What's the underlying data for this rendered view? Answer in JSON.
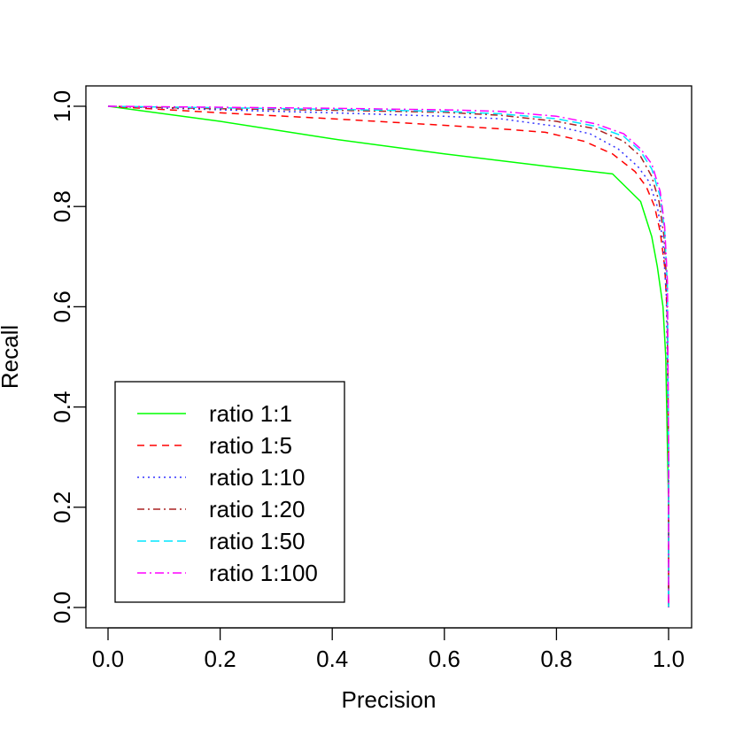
{
  "chart_data": {
    "type": "line",
    "title": "",
    "xlabel": "Precision",
    "ylabel": "Recall",
    "xlim": [
      0.0,
      1.0
    ],
    "ylim": [
      0.0,
      1.0
    ],
    "xticks": [
      "0.0",
      "0.2",
      "0.4",
      "0.6",
      "0.8",
      "1.0"
    ],
    "yticks": [
      "0.0",
      "0.2",
      "0.4",
      "0.6",
      "0.8",
      "1.0"
    ],
    "grid": false,
    "legend_position": "bottom-left",
    "series": [
      {
        "name": "ratio 1:1",
        "color": "#00ff00",
        "dash": "solid",
        "x": [
          0.0,
          0.2,
          0.4,
          0.6,
          0.8,
          0.9,
          0.95,
          0.97,
          0.98,
          0.99,
          0.995,
          1.0,
          1.0
        ],
        "y": [
          1.0,
          0.97,
          0.935,
          0.905,
          0.878,
          0.865,
          0.81,
          0.74,
          0.68,
          0.6,
          0.5,
          0.2,
          0.0
        ]
      },
      {
        "name": "ratio 1:5",
        "color": "#ff0000",
        "dash": "8,6",
        "x": [
          0.0,
          0.2,
          0.4,
          0.6,
          0.7,
          0.78,
          0.85,
          0.9,
          0.94,
          0.96,
          0.975,
          0.985,
          0.993,
          0.998,
          1.0,
          1.0
        ],
        "y": [
          1.0,
          0.987,
          0.975,
          0.962,
          0.955,
          0.948,
          0.93,
          0.905,
          0.87,
          0.84,
          0.8,
          0.75,
          0.68,
          0.58,
          0.3,
          0.0
        ]
      },
      {
        "name": "ratio 1:10",
        "color": "#3333ff",
        "dash": "2,4",
        "x": [
          0.0,
          0.2,
          0.4,
          0.6,
          0.7,
          0.8,
          0.86,
          0.91,
          0.945,
          0.965,
          0.98,
          0.99,
          0.996,
          1.0,
          1.0
        ],
        "y": [
          1.0,
          0.993,
          0.987,
          0.98,
          0.975,
          0.96,
          0.945,
          0.915,
          0.88,
          0.85,
          0.8,
          0.73,
          0.62,
          0.3,
          0.0
        ]
      },
      {
        "name": "ratio 1:20",
        "color": "#aa2222",
        "dash": "8,4,2,4",
        "x": [
          0.0,
          0.2,
          0.4,
          0.6,
          0.7,
          0.8,
          0.87,
          0.92,
          0.95,
          0.97,
          0.983,
          0.992,
          0.997,
          1.0,
          1.0
        ],
        "y": [
          1.0,
          0.995,
          0.992,
          0.988,
          0.982,
          0.97,
          0.955,
          0.93,
          0.9,
          0.86,
          0.81,
          0.74,
          0.64,
          0.3,
          0.0
        ]
      },
      {
        "name": "ratio 1:50",
        "color": "#00e5ff",
        "dash": "10,5",
        "x": [
          0.0,
          0.2,
          0.4,
          0.6,
          0.7,
          0.8,
          0.87,
          0.92,
          0.95,
          0.97,
          0.985,
          0.993,
          0.998,
          1.0,
          1.0
        ],
        "y": [
          1.0,
          0.997,
          0.994,
          0.99,
          0.985,
          0.975,
          0.96,
          0.94,
          0.91,
          0.875,
          0.82,
          0.75,
          0.64,
          0.3,
          0.0
        ]
      },
      {
        "name": "ratio 1:100",
        "color": "#ff00ff",
        "dash": "10,4,2,4",
        "x": [
          0.0,
          0.2,
          0.4,
          0.6,
          0.7,
          0.8,
          0.87,
          0.92,
          0.95,
          0.97,
          0.985,
          0.993,
          0.998,
          1.0,
          1.0
        ],
        "y": [
          1.0,
          0.998,
          0.996,
          0.993,
          0.99,
          0.98,
          0.965,
          0.945,
          0.915,
          0.885,
          0.83,
          0.76,
          0.65,
          0.3,
          0.0
        ]
      }
    ]
  }
}
